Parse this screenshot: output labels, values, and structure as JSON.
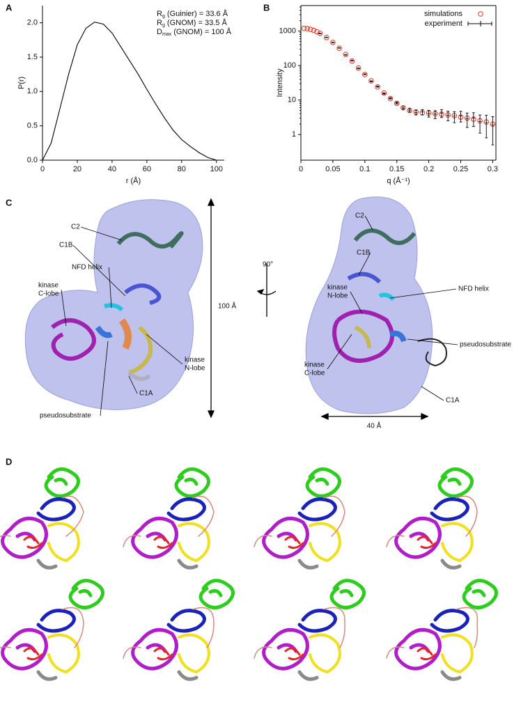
{
  "chart_data": [
    {
      "type": "line",
      "xlabel": "r (Å)",
      "ylabel": "P(r)",
      "color": "#000000",
      "x": [
        0,
        5,
        10,
        15,
        20,
        25,
        30,
        35,
        40,
        45,
        50,
        55,
        60,
        65,
        70,
        75,
        80,
        85,
        90,
        95,
        100
      ],
      "values": [
        0,
        0.25,
        0.75,
        1.25,
        1.68,
        1.92,
        2.01,
        1.98,
        1.85,
        1.65,
        1.45,
        1.25,
        1.03,
        0.82,
        0.62,
        0.44,
        0.3,
        0.2,
        0.11,
        0.04,
        0
      ],
      "xlim": [
        0,
        104.5
      ],
      "ylim": [
        0,
        2.25
      ],
      "xticks": [
        0,
        20,
        40,
        60,
        80,
        100
      ],
      "yticks": [
        {
          "value": 0,
          "label": "0.0"
        },
        0.5,
        {
          "value": 1,
          "label": "1.0"
        },
        1.5,
        {
          "value": 2,
          "label": "2.0"
        }
      ],
      "annotations": [
        {
          "main": "R",
          "sub": "g",
          "rest": " (Guinier) = 33.6 Å"
        },
        {
          "main": "R",
          "sub": "g",
          "rest": " (GNOM) = 33.5 Å"
        },
        {
          "main": "D",
          "sub": "max",
          "rest": " (GNOM) = 100 Å"
        }
      ]
    },
    {
      "type": "scatter",
      "xlabel": "q (Å⁻¹)",
      "ylabel": "Intensity",
      "log_y": true,
      "legend": "upper right",
      "xlim": [
        0,
        0.305
      ],
      "ylim": [
        0.18,
        5500
      ],
      "xticks": [
        0,
        0.05,
        0.1,
        0.15,
        0.2,
        0.25,
        0.3
      ],
      "yticks": [
        1,
        10,
        100,
        1000
      ],
      "series": [
        {
          "name": "simulations",
          "color": "#e0301e",
          "marker": "circle",
          "x": [
            0.005,
            0.01,
            0.015,
            0.02,
            0.025,
            0.03,
            0.04,
            0.05,
            0.06,
            0.07,
            0.08,
            0.09,
            0.1,
            0.11,
            0.12,
            0.13,
            0.14,
            0.15,
            0.16,
            0.17,
            0.18,
            0.19,
            0.2,
            0.21,
            0.22,
            0.23,
            0.24,
            0.25,
            0.26,
            0.27,
            0.28,
            0.29,
            0.3
          ],
          "values": [
            1200,
            1180,
            1120,
            1050,
            960,
            860,
            650,
            470,
            320,
            210,
            135,
            85,
            55,
            36,
            24,
            16,
            11,
            8,
            6,
            5,
            4.5,
            4.3,
            4.2,
            4.0,
            3.9,
            3.7,
            3.5,
            3.2,
            3.0,
            2.8,
            2.5,
            2.3,
            2.0
          ]
        },
        {
          "name": "experiment",
          "color": "#000000",
          "marker": "errorbar",
          "x": [
            0.03,
            0.04,
            0.05,
            0.06,
            0.07,
            0.08,
            0.09,
            0.1,
            0.11,
            0.12,
            0.13,
            0.14,
            0.15,
            0.16,
            0.17,
            0.18,
            0.19,
            0.2,
            0.21,
            0.22,
            0.23,
            0.24,
            0.25,
            0.26,
            0.27,
            0.28,
            0.29,
            0.3
          ],
          "values": [
            850,
            655,
            465,
            325,
            205,
            138,
            83,
            56,
            35,
            24.5,
            15.5,
            11.2,
            8.2,
            5.8,
            5.1,
            4.4,
            4.5,
            4.1,
            3.9,
            4.2,
            3.6,
            3.4,
            3.5,
            2.9,
            3.0,
            2.4,
            2.2,
            1.9
          ],
          "errors": [
            15,
            10,
            8,
            6,
            4,
            3,
            2,
            1.5,
            1,
            0.8,
            0.6,
            0.5,
            0.5,
            0.5,
            0.6,
            0.7,
            0.8,
            0.9,
            1.0,
            1.1,
            1.1,
            1.2,
            1.2,
            1.3,
            1.3,
            1.3,
            1.4,
            1.4
          ]
        }
      ]
    }
  ],
  "panel_labels": [
    "A",
    "B",
    "C",
    "D"
  ],
  "panel_c": {
    "left_labels": [
      "C2",
      "C1B",
      "NFD helix",
      [
        "kinase",
        "C-lobe"
      ],
      [
        "kinase",
        "N-lobe"
      ],
      "C1A",
      "pseudosubstrate"
    ],
    "right_labels": [
      "C2",
      "C1B",
      [
        "kinase",
        "N-lobe"
      ],
      "NFD helix",
      "pseudosubstrate",
      [
        "kinase",
        "C-lobe"
      ],
      "C1A"
    ],
    "height_scale": "100 Å",
    "rotation": "90°",
    "width_scale": "40 Å"
  }
}
